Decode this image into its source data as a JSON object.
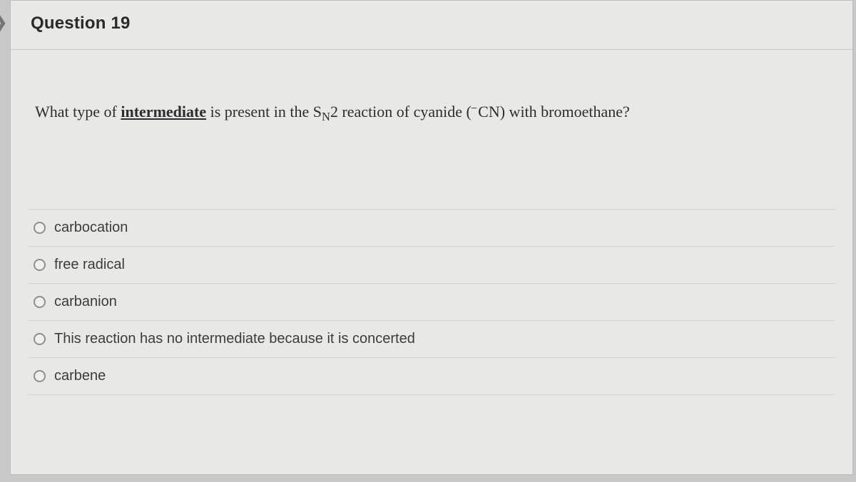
{
  "header": {
    "title": "Question 19"
  },
  "question": {
    "prefix": "What type of ",
    "underlined": "intermediate",
    "mid1": " is present in the S",
    "sub": "N",
    "after_sub": "2 reaction of cyanide (",
    "superminus": "−",
    "after_minus": "CN) with bromoethane?"
  },
  "options": [
    {
      "label": "carbocation"
    },
    {
      "label": "free radical"
    },
    {
      "label": "carbanion"
    },
    {
      "label": "This reaction has no intermediate because it is concerted"
    },
    {
      "label": "carbene"
    }
  ],
  "colors": {
    "page_bg": "#c8c8c8",
    "card_bg": "#e8e8e6",
    "border": "#bdbdbd",
    "text": "#2a2a2a",
    "option_border": "#d2d2d0"
  }
}
